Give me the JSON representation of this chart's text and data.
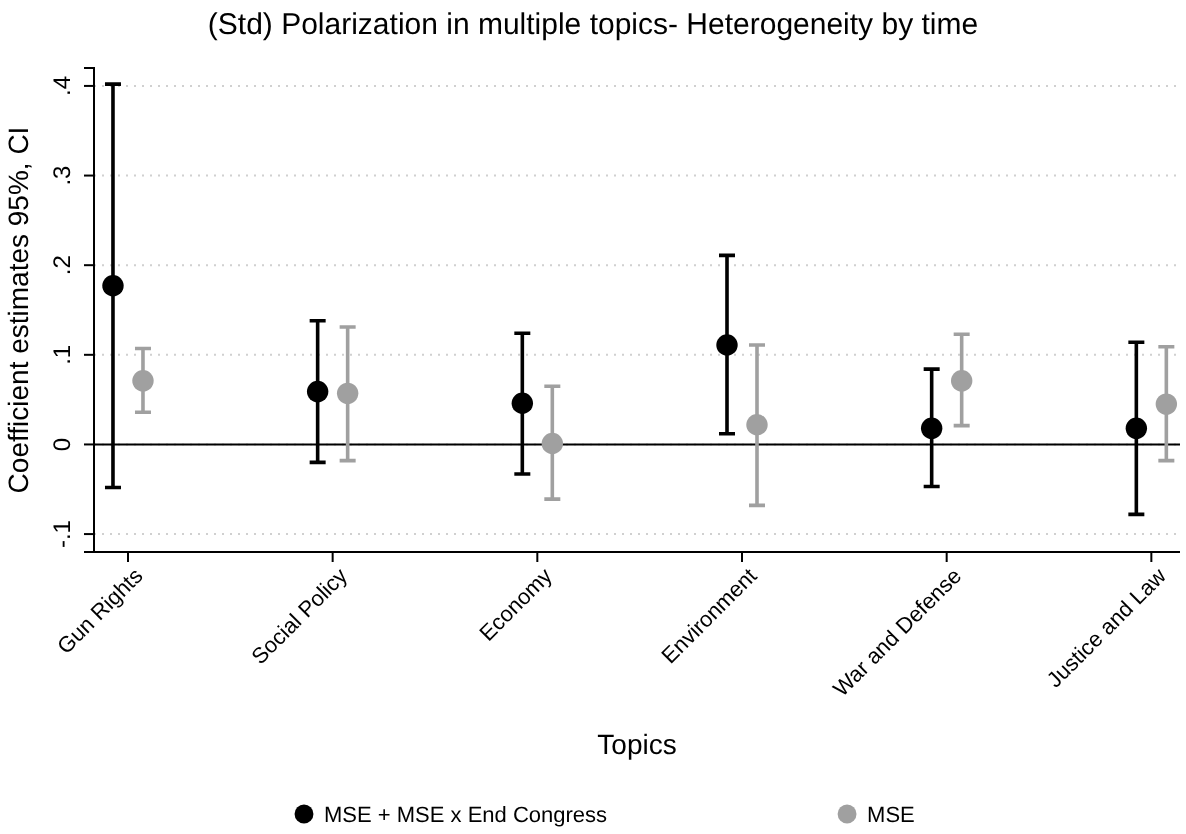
{
  "chart_data": {
    "type": "scatter",
    "title": "(Std) Polarization in multiple topics- Heterogeneity by time",
    "xlabel": "Topics",
    "ylabel": "Coefficient estimates 95%, CI",
    "categories": [
      "Gun Rights",
      "Social Policy",
      "Economy",
      "Environment",
      "War and Defense",
      "Justice and Law"
    ],
    "series": [
      {
        "name": "MSE + MSE x End Congress",
        "color": "#000000",
        "values": [
          0.177,
          0.059,
          0.046,
          0.111,
          0.018,
          0.018
        ],
        "errors": [
          [
            -0.048,
            0.402
          ],
          [
            -0.02,
            0.138
          ],
          [
            -0.033,
            0.124
          ],
          [
            0.012,
            0.211
          ],
          [
            -0.047,
            0.084
          ],
          [
            -0.078,
            0.114
          ]
        ]
      },
      {
        "name": "MSE",
        "color": "#a0a0a0",
        "values": [
          0.071,
          0.057,
          0.001,
          0.022,
          0.071,
          0.045
        ],
        "errors": [
          [
            0.036,
            0.107
          ],
          [
            -0.018,
            0.131
          ],
          [
            -0.061,
            0.065
          ],
          [
            -0.068,
            0.111
          ],
          [
            0.021,
            0.123
          ],
          [
            -0.018,
            0.109
          ]
        ]
      }
    ],
    "ylim": [
      -0.12,
      0.42
    ],
    "yticks": [
      {
        "value": -0.1,
        "label": "-.1"
      },
      0,
      {
        "value": 0.1,
        "label": ".1"
      },
      {
        "value": 0.2,
        "label": ".2"
      },
      {
        "value": 0.3,
        "label": ".3"
      },
      {
        "value": 0.4,
        "label": ".4"
      }
    ],
    "grid": "y",
    "marker": "circle",
    "legend": "bottom",
    "ref_lines": [
      {
        "axis": "y",
        "value": 0,
        "color": "#000000"
      }
    ]
  }
}
